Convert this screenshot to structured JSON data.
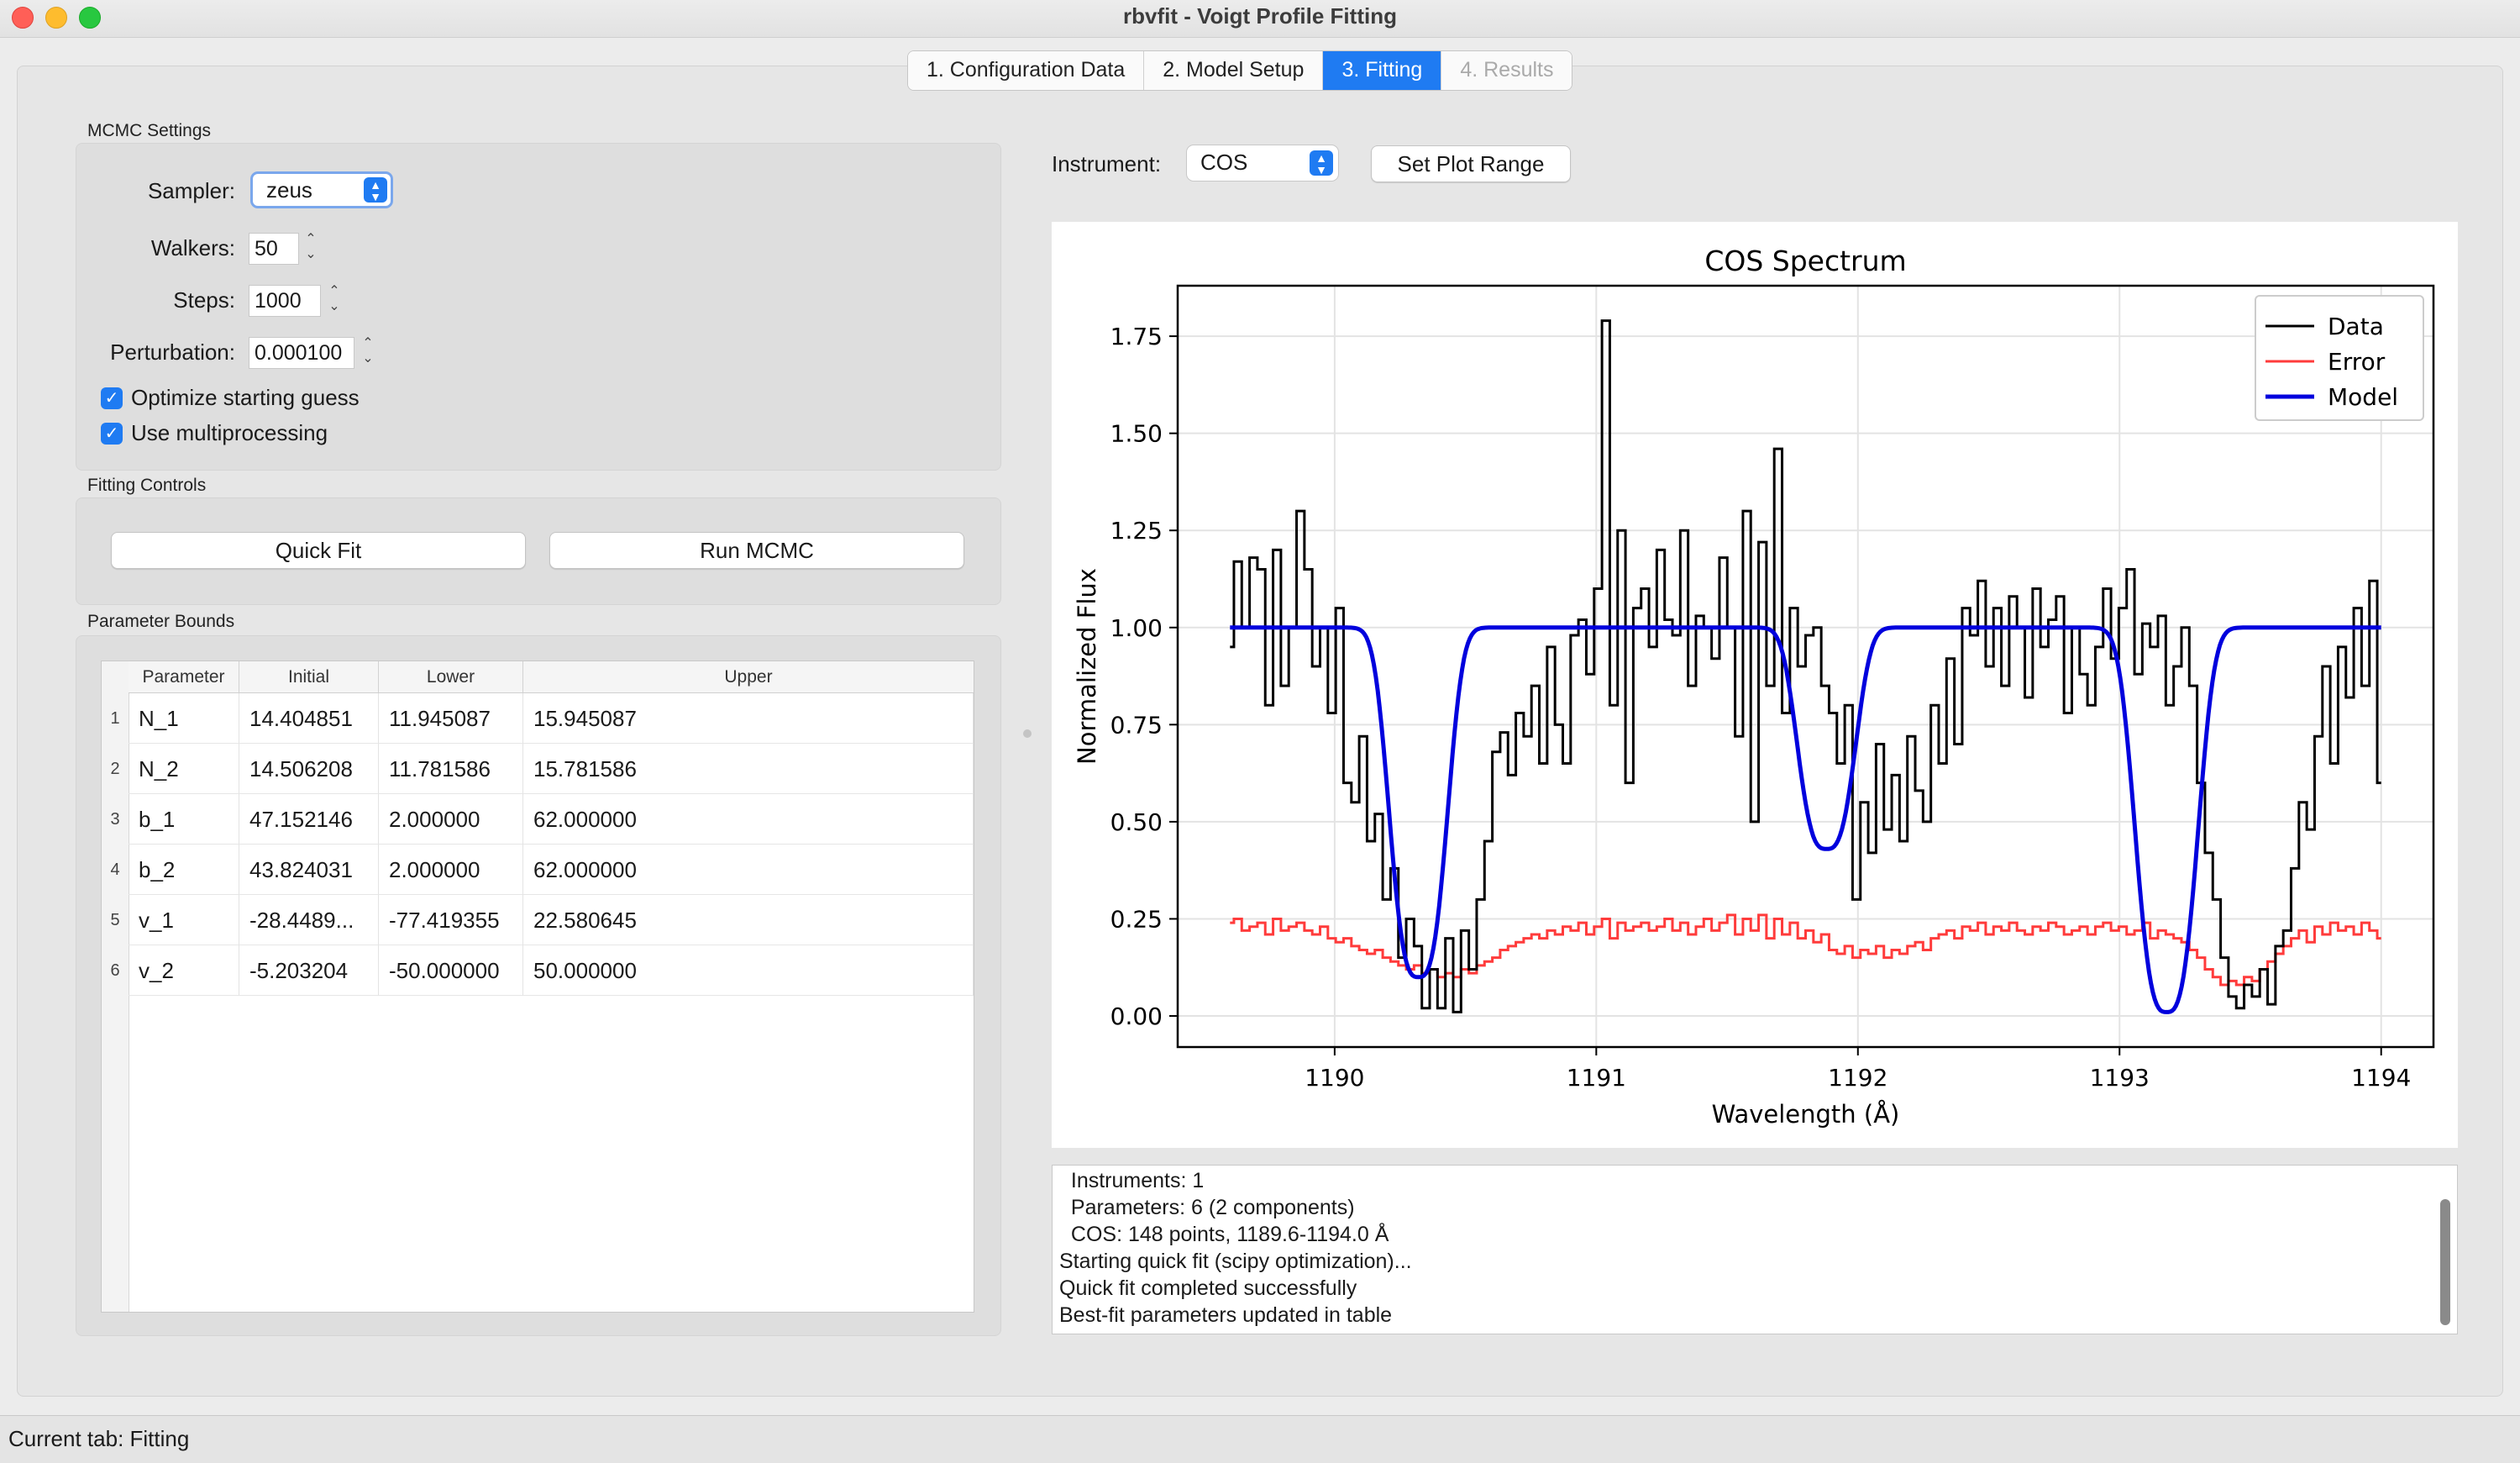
{
  "window": {
    "title": "rbvfit - Voigt Profile Fitting"
  },
  "tabs": [
    {
      "label": "1. Configuration  Data"
    },
    {
      "label": "2. Model Setup"
    },
    {
      "label": "3. Fitting"
    },
    {
      "label": "4. Results"
    }
  ],
  "mcmc": {
    "title": "MCMC Settings",
    "sampler_label": "Sampler:",
    "sampler_value": "zeus",
    "walkers_label": "Walkers:",
    "walkers_value": "50",
    "steps_label": "Steps:",
    "steps_value": "1000",
    "perturbation_label": "Perturbation:",
    "perturbation_value": "0.000100",
    "optimize_label": "Optimize starting guess",
    "multiprocessing_label": "Use multiprocessing"
  },
  "fitting_controls": {
    "title": "Fitting Controls",
    "quick_fit_label": "Quick Fit",
    "run_mcmc_label": "Run MCMC"
  },
  "parameter_bounds": {
    "title": "Parameter Bounds",
    "columns": [
      "Parameter",
      "Initial",
      "Lower",
      "Upper"
    ],
    "rows": [
      {
        "num": "1",
        "name": "N_1",
        "initial": "14.404851",
        "lower": "11.945087",
        "upper": "15.945087"
      },
      {
        "num": "2",
        "name": "N_2",
        "initial": "14.506208",
        "lower": "11.781586",
        "upper": "15.781586"
      },
      {
        "num": "3",
        "name": "b_1",
        "initial": "47.152146",
        "lower": "2.000000",
        "upper": "62.000000"
      },
      {
        "num": "4",
        "name": "b_2",
        "initial": "43.824031",
        "lower": "2.000000",
        "upper": "62.000000"
      },
      {
        "num": "5",
        "name": "v_1",
        "initial": "-28.4489...",
        "lower": "-77.419355",
        "upper": "22.580645"
      },
      {
        "num": "6",
        "name": "v_2",
        "initial": "-5.203204",
        "lower": "-50.000000",
        "upper": "50.000000"
      }
    ]
  },
  "instrument": {
    "label": "Instrument:",
    "value": "COS",
    "set_range_label": "Set Plot Range"
  },
  "chart_data": {
    "type": "line",
    "title": "COS Spectrum",
    "xlabel": "Wavelength (Å)",
    "ylabel": "Normalized Flux",
    "xlim": [
      1189.4,
      1194.2
    ],
    "ylim": [
      -0.08,
      1.88
    ],
    "xticks": [
      "1190",
      "1191",
      "1192",
      "1193",
      "1194"
    ],
    "xtick_values": [
      1190,
      1191,
      1192,
      1193,
      1194
    ],
    "yticks": [
      "0.00",
      "0.25",
      "0.50",
      "0.75",
      "1.00",
      "1.25",
      "1.50",
      "1.75"
    ],
    "ytick_values": [
      0,
      0.25,
      0.5,
      0.75,
      1.0,
      1.25,
      1.5,
      1.75
    ],
    "grid": true,
    "legend_position": "top-right",
    "x_start": 1189.6,
    "x_end": 1194.0,
    "series": [
      {
        "name": "Data",
        "color": "#000000",
        "style": "steps",
        "values": [
          0.95,
          1.17,
          1.0,
          1.18,
          1.15,
          0.8,
          1.2,
          0.85,
          1.0,
          1.3,
          1.15,
          0.9,
          1.0,
          0.78,
          1.05,
          0.6,
          0.55,
          0.72,
          0.45,
          0.52,
          0.3,
          0.38,
          0.15,
          0.25,
          0.18,
          0.02,
          0.12,
          0.02,
          0.2,
          0.01,
          0.22,
          0.12,
          0.3,
          0.45,
          0.68,
          0.73,
          0.62,
          0.78,
          0.72,
          0.85,
          0.65,
          0.95,
          0.75,
          0.65,
          0.98,
          1.02,
          0.88,
          1.1,
          1.79,
          0.8,
          1.25,
          0.6,
          1.05,
          1.1,
          0.95,
          1.2,
          1.02,
          0.98,
          1.25,
          0.85,
          1.03,
          1.0,
          0.92,
          1.18,
          1.0,
          0.72,
          1.3,
          0.5,
          1.22,
          0.85,
          1.46,
          0.78,
          1.05,
          0.9,
          0.98,
          1.0,
          0.85,
          0.78,
          0.65,
          0.8,
          0.3,
          0.55,
          0.42,
          0.7,
          0.48,
          0.62,
          0.45,
          0.72,
          0.58,
          0.5,
          0.8,
          0.65,
          0.92,
          0.7,
          1.05,
          0.98,
          1.12,
          0.9,
          1.05,
          0.85,
          1.08,
          1.0,
          0.82,
          1.1,
          0.95,
          1.02,
          1.08,
          0.78,
          1.0,
          0.88,
          0.8,
          0.95,
          1.1,
          0.92,
          1.05,
          1.15,
          0.88,
          1.01,
          0.95,
          1.03,
          0.8,
          0.9,
          1.0,
          0.85,
          0.6,
          0.42,
          0.3,
          0.15,
          0.05,
          0.02,
          0.08,
          0.05,
          0.12,
          0.03,
          0.18,
          0.22,
          0.38,
          0.55,
          0.48,
          0.72,
          0.9,
          0.65,
          0.95,
          0.82,
          1.05,
          0.85,
          1.12,
          0.6
        ]
      },
      {
        "name": "Error",
        "color": "#ff3b3b",
        "style": "steps",
        "values": [
          0.24,
          0.25,
          0.22,
          0.23,
          0.24,
          0.21,
          0.25,
          0.22,
          0.23,
          0.24,
          0.22,
          0.21,
          0.23,
          0.2,
          0.19,
          0.2,
          0.18,
          0.17,
          0.16,
          0.17,
          0.15,
          0.14,
          0.13,
          0.12,
          0.13,
          0.11,
          0.12,
          0.1,
          0.11,
          0.1,
          0.12,
          0.11,
          0.13,
          0.14,
          0.15,
          0.17,
          0.18,
          0.19,
          0.2,
          0.21,
          0.2,
          0.22,
          0.21,
          0.23,
          0.22,
          0.24,
          0.21,
          0.23,
          0.25,
          0.2,
          0.24,
          0.22,
          0.23,
          0.24,
          0.22,
          0.23,
          0.25,
          0.22,
          0.24,
          0.21,
          0.23,
          0.25,
          0.22,
          0.24,
          0.26,
          0.21,
          0.25,
          0.22,
          0.26,
          0.2,
          0.25,
          0.21,
          0.24,
          0.2,
          0.22,
          0.19,
          0.21,
          0.17,
          0.16,
          0.18,
          0.15,
          0.17,
          0.16,
          0.18,
          0.15,
          0.17,
          0.16,
          0.18,
          0.19,
          0.17,
          0.2,
          0.21,
          0.22,
          0.2,
          0.23,
          0.22,
          0.24,
          0.21,
          0.23,
          0.22,
          0.24,
          0.22,
          0.21,
          0.23,
          0.22,
          0.24,
          0.23,
          0.21,
          0.22,
          0.23,
          0.21,
          0.23,
          0.24,
          0.22,
          0.23,
          0.21,
          0.22,
          0.24,
          0.2,
          0.22,
          0.21,
          0.2,
          0.19,
          0.17,
          0.15,
          0.12,
          0.1,
          0.08,
          0.09,
          0.08,
          0.1,
          0.09,
          0.12,
          0.14,
          0.16,
          0.18,
          0.2,
          0.22,
          0.19,
          0.23,
          0.21,
          0.24,
          0.22,
          0.23,
          0.21,
          0.24,
          0.22,
          0.2
        ]
      },
      {
        "name": "Model",
        "color": "#0000dd",
        "style": "line",
        "components": [
          {
            "center": 1190.32,
            "depth": 0.9,
            "width": 0.13
          },
          {
            "center": 1191.88,
            "depth": 0.57,
            "width": 0.13
          },
          {
            "center": 1193.18,
            "depth": 0.99,
            "width": 0.14
          }
        ]
      }
    ]
  },
  "log": {
    "lines": [
      "  Instruments: 1",
      "  Parameters: 6 (2 components)",
      "  COS: 148 points, 1189.6-1194.0 Å",
      "Starting quick fit (scipy optimization)...",
      "Quick fit completed successfully",
      "Best-fit parameters updated in table"
    ]
  },
  "status": {
    "text": "Current tab: Fitting"
  },
  "colors": {
    "accent": "#1f7bf2"
  }
}
